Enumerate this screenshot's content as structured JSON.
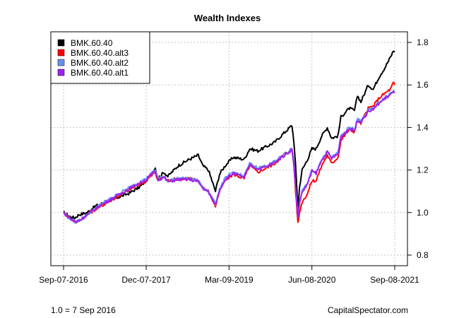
{
  "chart_data": {
    "type": "line",
    "title": "Wealth Indexes",
    "xlabel": "",
    "ylabel": "",
    "x_start": "2016-09-07",
    "x_end": "2021-09-08",
    "x_ticks": [
      {
        "date": "2016-09-07",
        "label": "Sep-07-2016"
      },
      {
        "date": "2017-12-07",
        "label": "Dec-07-2017"
      },
      {
        "date": "2019-03-09",
        "label": "Mar-09-2019"
      },
      {
        "date": "2020-06-08",
        "label": "Jun-08-2020"
      },
      {
        "date": "2021-09-08",
        "label": "Sep-08-2021"
      }
    ],
    "y_ticks": [
      0.8,
      1.0,
      1.2,
      1.4,
      1.6,
      1.8
    ],
    "y_tick_labels": [
      "0.8",
      "1.0",
      "1.2",
      "1.4",
      "1.6",
      "1.8"
    ],
    "ylim": [
      0.75,
      1.85
    ],
    "y_axis_side": "right",
    "grid": true,
    "legend_position": "top-left",
    "series": [
      {
        "name": "BMK.60.40",
        "color": "#000000",
        "points": [
          [
            "2016-09-07",
            1.0
          ],
          [
            "2016-10-15",
            0.98
          ],
          [
            "2016-11-08",
            0.975
          ],
          [
            "2016-12-01",
            0.99
          ],
          [
            "2017-01-15",
            1.0
          ],
          [
            "2017-03-01",
            1.03
          ],
          [
            "2017-05-01",
            1.05
          ],
          [
            "2017-07-01",
            1.07
          ],
          [
            "2017-09-01",
            1.09
          ],
          [
            "2017-11-01",
            1.12
          ],
          [
            "2017-12-07",
            1.15
          ],
          [
            "2018-01-26",
            1.21
          ],
          [
            "2018-02-09",
            1.16
          ],
          [
            "2018-03-15",
            1.19
          ],
          [
            "2018-04-05",
            1.17
          ],
          [
            "2018-06-01",
            1.22
          ],
          [
            "2018-08-01",
            1.25
          ],
          [
            "2018-09-20",
            1.27
          ],
          [
            "2018-10-15",
            1.22
          ],
          [
            "2018-11-15",
            1.2
          ],
          [
            "2018-12-24",
            1.1
          ],
          [
            "2019-01-15",
            1.18
          ],
          [
            "2019-02-15",
            1.22
          ],
          [
            "2019-04-01",
            1.26
          ],
          [
            "2019-05-31",
            1.25
          ],
          [
            "2019-07-01",
            1.3
          ],
          [
            "2019-08-15",
            1.29
          ],
          [
            "2019-10-01",
            1.31
          ],
          [
            "2019-11-15",
            1.33
          ],
          [
            "2020-01-01",
            1.37
          ],
          [
            "2020-02-19",
            1.41
          ],
          [
            "2020-03-01",
            1.33
          ],
          [
            "2020-03-10",
            1.22
          ],
          [
            "2020-03-23",
            1.02
          ],
          [
            "2020-04-01",
            1.12
          ],
          [
            "2020-04-15",
            1.2
          ],
          [
            "2020-05-15",
            1.25
          ],
          [
            "2020-06-08",
            1.3
          ],
          [
            "2020-07-01",
            1.3
          ],
          [
            "2020-08-01",
            1.36
          ],
          [
            "2020-09-01",
            1.4
          ],
          [
            "2020-09-25",
            1.35
          ],
          [
            "2020-10-30",
            1.36
          ],
          [
            "2020-11-15",
            1.45
          ],
          [
            "2020-12-31",
            1.49
          ],
          [
            "2021-01-29",
            1.48
          ],
          [
            "2021-02-15",
            1.55
          ],
          [
            "2021-03-05",
            1.52
          ],
          [
            "2021-04-15",
            1.6
          ],
          [
            "2021-05-12",
            1.58
          ],
          [
            "2021-06-15",
            1.64
          ],
          [
            "2021-07-15",
            1.68
          ],
          [
            "2021-08-15",
            1.73
          ],
          [
            "2021-09-01",
            1.76
          ],
          [
            "2021-09-08",
            1.76
          ]
        ]
      },
      {
        "name": "BMK.60.40.alt3",
        "color": "#ff0000",
        "points": [
          [
            "2016-09-07",
            1.0
          ],
          [
            "2016-10-15",
            0.97
          ],
          [
            "2016-11-15",
            0.955
          ],
          [
            "2016-12-15",
            0.97
          ],
          [
            "2017-02-01",
            1.0
          ],
          [
            "2017-04-01",
            1.03
          ],
          [
            "2017-06-01",
            1.06
          ],
          [
            "2017-08-01",
            1.09
          ],
          [
            "2017-10-01",
            1.12
          ],
          [
            "2017-12-07",
            1.15
          ],
          [
            "2018-01-26",
            1.19
          ],
          [
            "2018-02-09",
            1.15
          ],
          [
            "2018-03-15",
            1.17
          ],
          [
            "2018-04-05",
            1.15
          ],
          [
            "2018-06-01",
            1.16
          ],
          [
            "2018-08-01",
            1.16
          ],
          [
            "2018-09-20",
            1.15
          ],
          [
            "2018-10-15",
            1.12
          ],
          [
            "2018-11-15",
            1.1
          ],
          [
            "2018-12-24",
            1.03
          ],
          [
            "2019-01-15",
            1.1
          ],
          [
            "2019-02-15",
            1.15
          ],
          [
            "2019-04-01",
            1.18
          ],
          [
            "2019-05-31",
            1.16
          ],
          [
            "2019-07-01",
            1.22
          ],
          [
            "2019-08-15",
            1.19
          ],
          [
            "2019-10-01",
            1.21
          ],
          [
            "2019-11-15",
            1.23
          ],
          [
            "2020-01-01",
            1.27
          ],
          [
            "2020-02-19",
            1.3
          ],
          [
            "2020-03-01",
            1.22
          ],
          [
            "2020-03-10",
            1.1
          ],
          [
            "2020-03-23",
            0.95
          ],
          [
            "2020-04-01",
            1.0
          ],
          [
            "2020-04-15",
            1.05
          ],
          [
            "2020-05-15",
            1.09
          ],
          [
            "2020-06-08",
            1.15
          ],
          [
            "2020-07-01",
            1.15
          ],
          [
            "2020-08-01",
            1.22
          ],
          [
            "2020-09-01",
            1.27
          ],
          [
            "2020-09-25",
            1.23
          ],
          [
            "2020-10-30",
            1.26
          ],
          [
            "2020-11-15",
            1.34
          ],
          [
            "2020-12-31",
            1.39
          ],
          [
            "2021-01-29",
            1.38
          ],
          [
            "2021-02-15",
            1.44
          ],
          [
            "2021-03-05",
            1.42
          ],
          [
            "2021-04-15",
            1.49
          ],
          [
            "2021-05-12",
            1.5
          ],
          [
            "2021-06-15",
            1.54
          ],
          [
            "2021-07-15",
            1.56
          ],
          [
            "2021-08-15",
            1.58
          ],
          [
            "2021-09-01",
            1.61
          ],
          [
            "2021-09-08",
            1.6
          ]
        ]
      },
      {
        "name": "BMK.60.40.alt2",
        "color": "#6495ed",
        "points": [
          [
            "2016-09-07",
            1.0
          ],
          [
            "2016-10-15",
            0.97
          ],
          [
            "2016-11-15",
            0.955
          ],
          [
            "2016-12-15",
            0.97
          ],
          [
            "2017-02-01",
            1.0
          ],
          [
            "2017-04-01",
            1.04
          ],
          [
            "2017-06-01",
            1.07
          ],
          [
            "2017-08-01",
            1.1
          ],
          [
            "2017-10-01",
            1.13
          ],
          [
            "2017-12-07",
            1.16
          ],
          [
            "2018-01-26",
            1.2
          ],
          [
            "2018-02-09",
            1.16
          ],
          [
            "2018-03-15",
            1.17
          ],
          [
            "2018-04-05",
            1.15
          ],
          [
            "2018-06-01",
            1.16
          ],
          [
            "2018-08-01",
            1.16
          ],
          [
            "2018-09-20",
            1.15
          ],
          [
            "2018-10-15",
            1.12
          ],
          [
            "2018-11-15",
            1.1
          ],
          [
            "2018-12-24",
            1.04
          ],
          [
            "2019-01-15",
            1.11
          ],
          [
            "2019-02-15",
            1.16
          ],
          [
            "2019-04-01",
            1.19
          ],
          [
            "2019-05-31",
            1.17
          ],
          [
            "2019-07-01",
            1.23
          ],
          [
            "2019-08-15",
            1.21
          ],
          [
            "2019-10-01",
            1.22
          ],
          [
            "2019-11-15",
            1.24
          ],
          [
            "2020-01-01",
            1.27
          ],
          [
            "2020-02-19",
            1.3
          ],
          [
            "2020-03-01",
            1.23
          ],
          [
            "2020-03-10",
            1.12
          ],
          [
            "2020-03-23",
            0.98
          ],
          [
            "2020-04-01",
            1.05
          ],
          [
            "2020-04-15",
            1.1
          ],
          [
            "2020-05-15",
            1.14
          ],
          [
            "2020-06-08",
            1.2
          ],
          [
            "2020-07-01",
            1.19
          ],
          [
            "2020-08-01",
            1.25
          ],
          [
            "2020-09-01",
            1.29
          ],
          [
            "2020-09-25",
            1.26
          ],
          [
            "2020-10-30",
            1.28
          ],
          [
            "2020-11-15",
            1.36
          ],
          [
            "2020-12-31",
            1.4
          ],
          [
            "2021-01-29",
            1.39
          ],
          [
            "2021-02-15",
            1.44
          ],
          [
            "2021-03-05",
            1.43
          ],
          [
            "2021-04-15",
            1.48
          ],
          [
            "2021-05-12",
            1.49
          ],
          [
            "2021-06-15",
            1.52
          ],
          [
            "2021-07-15",
            1.54
          ],
          [
            "2021-08-15",
            1.56
          ],
          [
            "2021-09-01",
            1.57
          ],
          [
            "2021-09-08",
            1.57
          ]
        ]
      },
      {
        "name": "BMK.60.40.alt1",
        "color": "#a020f0",
        "points": [
          [
            "2016-09-07",
            1.0
          ],
          [
            "2016-10-15",
            0.97
          ],
          [
            "2016-11-15",
            0.955
          ],
          [
            "2016-12-15",
            0.97
          ],
          [
            "2017-02-01",
            1.0
          ],
          [
            "2017-04-01",
            1.035
          ],
          [
            "2017-06-01",
            1.065
          ],
          [
            "2017-08-01",
            1.095
          ],
          [
            "2017-10-01",
            1.125
          ],
          [
            "2017-12-07",
            1.155
          ],
          [
            "2018-01-26",
            1.195
          ],
          [
            "2018-02-09",
            1.155
          ],
          [
            "2018-03-15",
            1.165
          ],
          [
            "2018-04-05",
            1.145
          ],
          [
            "2018-06-01",
            1.155
          ],
          [
            "2018-08-01",
            1.155
          ],
          [
            "2018-09-20",
            1.145
          ],
          [
            "2018-10-15",
            1.115
          ],
          [
            "2018-11-15",
            1.095
          ],
          [
            "2018-12-24",
            1.035
          ],
          [
            "2019-01-15",
            1.105
          ],
          [
            "2019-02-15",
            1.155
          ],
          [
            "2019-04-01",
            1.185
          ],
          [
            "2019-05-31",
            1.165
          ],
          [
            "2019-07-01",
            1.225
          ],
          [
            "2019-08-15",
            1.205
          ],
          [
            "2019-10-01",
            1.215
          ],
          [
            "2019-11-15",
            1.235
          ],
          [
            "2020-01-01",
            1.265
          ],
          [
            "2020-02-19",
            1.295
          ],
          [
            "2020-03-01",
            1.225
          ],
          [
            "2020-03-10",
            1.115
          ],
          [
            "2020-03-23",
            0.975
          ],
          [
            "2020-04-01",
            1.045
          ],
          [
            "2020-04-15",
            1.095
          ],
          [
            "2020-05-15",
            1.135
          ],
          [
            "2020-06-08",
            1.195
          ],
          [
            "2020-07-01",
            1.185
          ],
          [
            "2020-08-01",
            1.245
          ],
          [
            "2020-09-01",
            1.285
          ],
          [
            "2020-09-25",
            1.255
          ],
          [
            "2020-10-30",
            1.275
          ],
          [
            "2020-11-15",
            1.355
          ],
          [
            "2020-12-31",
            1.395
          ],
          [
            "2021-01-29",
            1.385
          ],
          [
            "2021-02-15",
            1.435
          ],
          [
            "2021-03-05",
            1.425
          ],
          [
            "2021-04-15",
            1.475
          ],
          [
            "2021-05-12",
            1.485
          ],
          [
            "2021-06-15",
            1.515
          ],
          [
            "2021-07-15",
            1.535
          ],
          [
            "2021-08-15",
            1.555
          ],
          [
            "2021-09-01",
            1.565
          ],
          [
            "2021-09-08",
            1.565
          ]
        ]
      }
    ]
  },
  "footer": {
    "left_note": "1.0 = 7 Sep 2016",
    "right_note": "CapitalSpectator.com"
  }
}
